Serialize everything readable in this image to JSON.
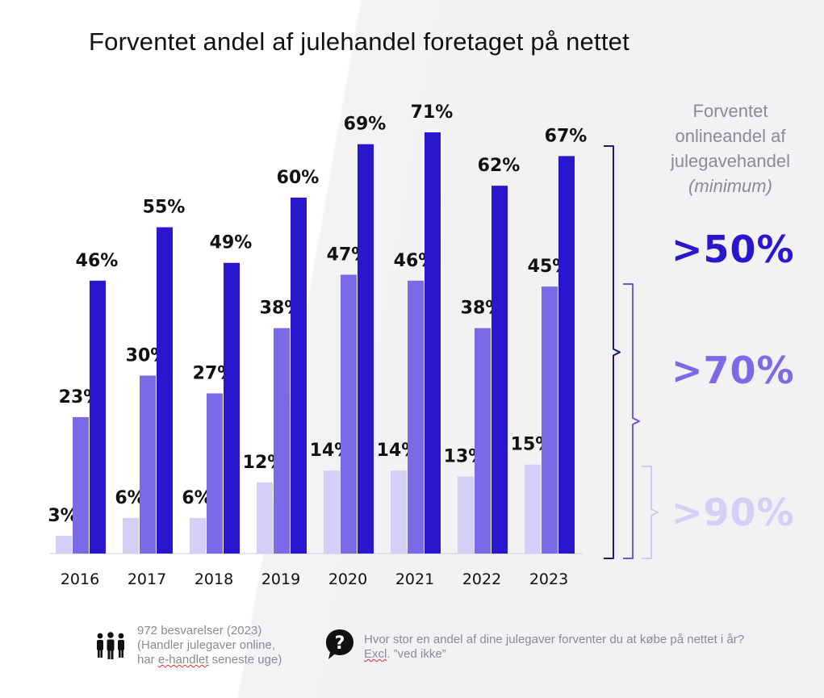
{
  "title": "Forventet andel af julehandel foretaget på nettet",
  "chart_data": {
    "type": "bar",
    "title": "Forventet andel af julehandel foretaget på nettet",
    "categories": [
      "2016",
      "2017",
      "2018",
      "2019",
      "2020",
      "2021",
      "2022",
      "2023"
    ],
    "series": [
      {
        "name": ">90%",
        "color": "#d4cff6",
        "values": [
          3,
          6,
          6,
          12,
          14,
          14,
          13,
          15
        ]
      },
      {
        "name": ">70%",
        "color": "#7a6ae6",
        "values": [
          23,
          30,
          27,
          38,
          47,
          46,
          38,
          45
        ]
      },
      {
        "name": ">50%",
        "color": "#2a16cc",
        "values": [
          46,
          55,
          49,
          60,
          69,
          71,
          62,
          67
        ]
      }
    ],
    "value_suffix": "%",
    "ylim": [
      0,
      72
    ],
    "grid": false,
    "legend": "right"
  },
  "side_legend": {
    "heading_lines": [
      "Forventet",
      "onlineandel af",
      "julegavehandel"
    ],
    "heading_italic": "(minimum)",
    "items": [
      {
        "label": ">50%",
        "color": "#2a16cc"
      },
      {
        "label": ">70%",
        "color": "#7a6ae6"
      },
      {
        "label": ">90%",
        "color": "#d4cff6"
      }
    ]
  },
  "footer": {
    "respondents_icon": "people-group-icon",
    "respondents_lines": [
      "972 besvarelser (2023)",
      "(Handler julegaver online,",
      "har ",
      "e-handlet",
      " seneste uge)"
    ],
    "question_icon": "question-bubble-icon",
    "question_lines": [
      "Hvor stor en andel af dine julegaver forventer du at købe på nettet i år?",
      "Excl",
      ". ”ved ikke”"
    ]
  }
}
